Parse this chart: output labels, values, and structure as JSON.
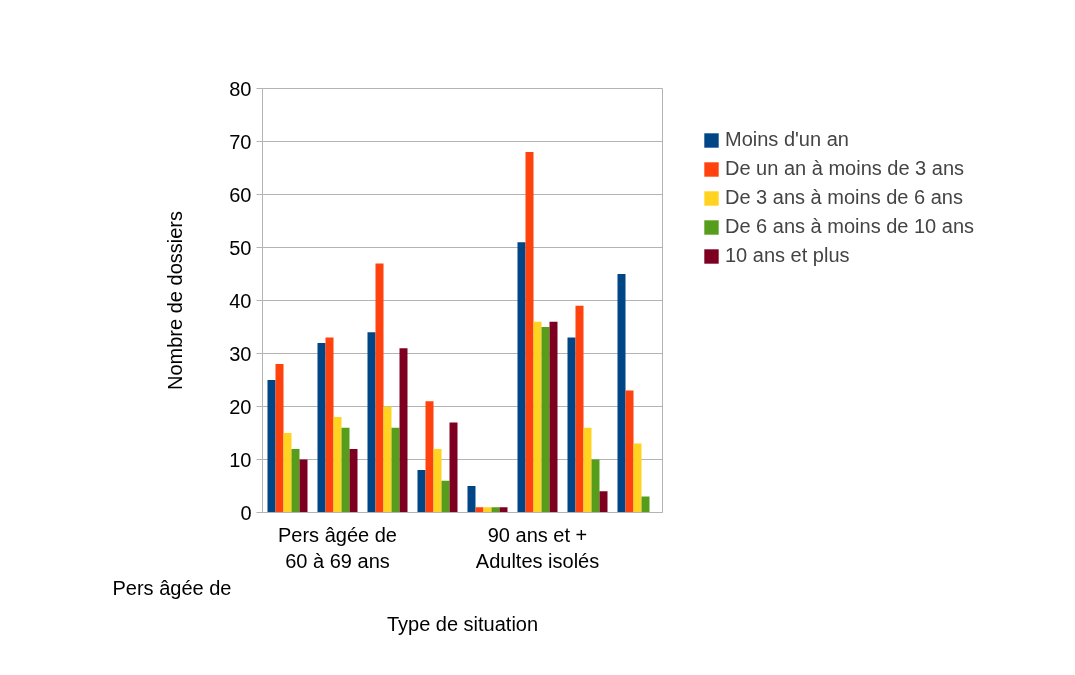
{
  "chart_data": {
    "type": "bar",
    "xlabel": "Type de situation",
    "ylabel": "Nombre de dossiers",
    "annotations": [
      "Pers âgée de"
    ],
    "categories": [
      null,
      "Pers âgée de\n60 à 69 ans",
      null,
      null,
      null,
      "90 ans et +\nAdultes isolés",
      null,
      null
    ],
    "series": [
      {
        "name": "Moins d'un an",
        "color": "#004586",
        "values": [
          25,
          32,
          34,
          8,
          5,
          51,
          33,
          45
        ]
      },
      {
        "name": "De un an à moins de 3 ans",
        "color": "#ff420e",
        "values": [
          28,
          33,
          47,
          21,
          1,
          68,
          39,
          23
        ]
      },
      {
        "name": "De 3 ans à moins de 6 ans",
        "color": "#ffd320",
        "values": [
          15,
          18,
          20,
          12,
          1,
          36,
          16,
          13
        ]
      },
      {
        "name": "De 6 ans à moins de 10 ans",
        "color": "#579d1c",
        "values": [
          12,
          16,
          16,
          6,
          1,
          35,
          10,
          3
        ]
      },
      {
        "name": "10 ans et plus",
        "color": "#7e0021",
        "values": [
          10,
          12,
          31,
          17,
          1,
          36,
          4,
          null
        ]
      }
    ],
    "ylim": [
      0,
      80
    ],
    "yticks": [
      0,
      10,
      20,
      30,
      40,
      50,
      60,
      70,
      80
    ],
    "grid": "y",
    "legend": "right"
  }
}
